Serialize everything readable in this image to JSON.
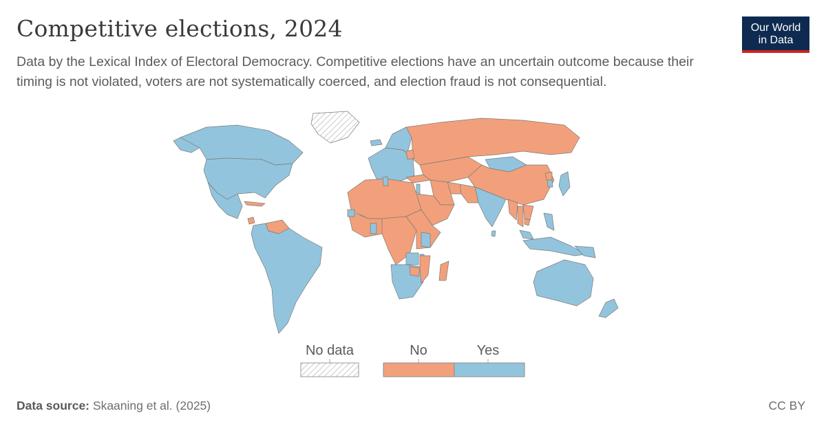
{
  "header": {
    "title": "Competitive elections, 2024",
    "subtitle": "Data by the Lexical Index of Electoral Democracy. Competitive elections have an uncertain outcome because their timing is not violated, voters are not systematically coerced, and election fraud is not consequential."
  },
  "logo": {
    "line1": "Our World",
    "line2": "in Data"
  },
  "legend": {
    "no_data_label": "No data",
    "categories": [
      {
        "label": "No",
        "color": "#f2a07b"
      },
      {
        "label": "Yes",
        "color": "#93c4dd"
      }
    ]
  },
  "colors": {
    "no": "#f2a07b",
    "yes": "#93c4dd",
    "border": "#7a7a7a",
    "no_data": "#d9d9d9"
  },
  "footer": {
    "source_label": "Data source:",
    "source_text": "Skaaning et al. (2025)",
    "license": "CC BY"
  },
  "chart_data": {
    "type": "choropleth",
    "year": 2024,
    "categories": [
      "No data",
      "No",
      "Yes"
    ],
    "regions": [
      {
        "name": "Canada",
        "value": "Yes"
      },
      {
        "name": "United States",
        "value": "Yes"
      },
      {
        "name": "Alaska",
        "value": "Yes"
      },
      {
        "name": "Mexico",
        "value": "Yes"
      },
      {
        "name": "Cuba",
        "value": "No"
      },
      {
        "name": "Venezuela",
        "value": "No"
      },
      {
        "name": "Nicaragua",
        "value": "No"
      },
      {
        "name": "South America (rest)",
        "value": "Yes"
      },
      {
        "name": "Greenland",
        "value": "No data"
      },
      {
        "name": "Iceland",
        "value": "Yes"
      },
      {
        "name": "Western Europe",
        "value": "Yes"
      },
      {
        "name": "Scandinavia",
        "value": "Yes"
      },
      {
        "name": "Russia",
        "value": "No"
      },
      {
        "name": "Belarus",
        "value": "No"
      },
      {
        "name": "Turkey",
        "value": "No"
      },
      {
        "name": "Central Asia",
        "value": "No"
      },
      {
        "name": "Mongolia",
        "value": "Yes"
      },
      {
        "name": "China",
        "value": "No"
      },
      {
        "name": "Japan",
        "value": "Yes"
      },
      {
        "name": "South Korea",
        "value": "Yes"
      },
      {
        "name": "North Korea",
        "value": "No"
      },
      {
        "name": "India",
        "value": "Yes"
      },
      {
        "name": "Sri Lanka",
        "value": "Yes"
      },
      {
        "name": "Pakistan",
        "value": "No"
      },
      {
        "name": "Afghanistan",
        "value": "No"
      },
      {
        "name": "Iran",
        "value": "No"
      },
      {
        "name": "Arabian Peninsula",
        "value": "No"
      },
      {
        "name": "Israel",
        "value": "Yes"
      },
      {
        "name": "Myanmar",
        "value": "No"
      },
      {
        "name": "Thailand",
        "value": "No"
      },
      {
        "name": "Vietnam",
        "value": "No"
      },
      {
        "name": "Cambodia",
        "value": "No"
      },
      {
        "name": "Malaysia",
        "value": "Yes"
      },
      {
        "name": "Indonesia",
        "value": "Yes"
      },
      {
        "name": "Philippines",
        "value": "Yes"
      },
      {
        "name": "Papua New Guinea",
        "value": "Yes"
      },
      {
        "name": "Australia",
        "value": "Yes"
      },
      {
        "name": "New Zealand",
        "value": "Yes"
      },
      {
        "name": "North Africa",
        "value": "No"
      },
      {
        "name": "Tunisia",
        "value": "Yes"
      },
      {
        "name": "West Africa (most)",
        "value": "No"
      },
      {
        "name": "Ghana",
        "value": "Yes"
      },
      {
        "name": "Senegal",
        "value": "Yes"
      },
      {
        "name": "Central Africa",
        "value": "No"
      },
      {
        "name": "East Africa",
        "value": "No"
      },
      {
        "name": "Kenya",
        "value": "Yes"
      },
      {
        "name": "Malawi",
        "value": "Yes"
      },
      {
        "name": "Zambia",
        "value": "Yes"
      },
      {
        "name": "Southern Africa",
        "value": "Yes"
      },
      {
        "name": "Zimbabwe",
        "value": "No"
      },
      {
        "name": "Mozambique",
        "value": "No"
      },
      {
        "name": "Madagascar",
        "value": "No"
      }
    ]
  }
}
